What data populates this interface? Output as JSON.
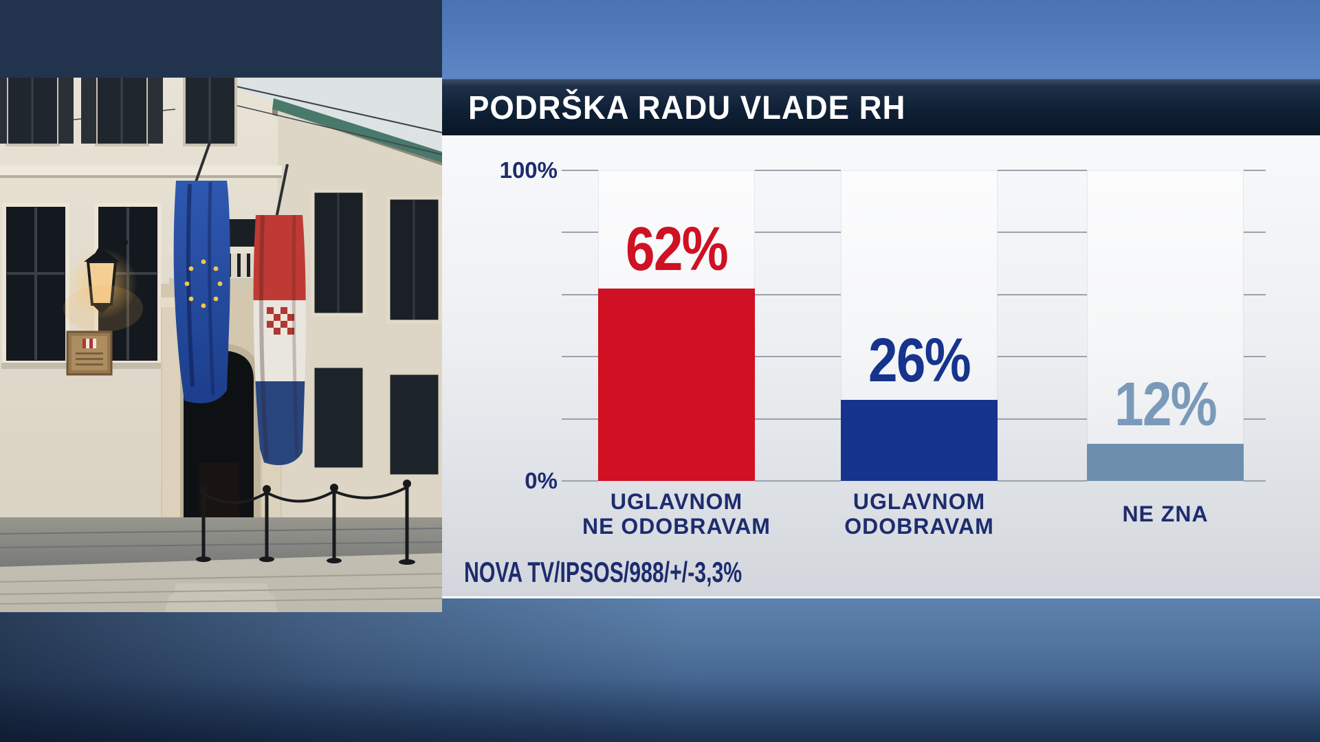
{
  "title_bar": {
    "title": "PODRŠKA RADU VLADE RH"
  },
  "y_axis": {
    "top": "100%",
    "bottom": "0%"
  },
  "source": "NOVA TV/IPSOS/988/+/-3,3%",
  "photo": {
    "name": "government-building-with-eu-and-croatian-flags"
  },
  "colors": {
    "accent_red": "#d01023",
    "accent_navy": "#16338d",
    "accent_steel": "#6d8ead",
    "label_navy": "#1d2c6e",
    "grid_gray": "#98a2ac"
  },
  "chart_data": {
    "type": "bar",
    "title": "PODRŠKA RADU VLADE RH",
    "categories": [
      "UGLAVNOM NE ODOBRAVAM",
      "UGLAVNOM ODOBRAVAM",
      "NE ZNA"
    ],
    "categories_lines": [
      [
        "UGLAVNOM",
        "NE ODOBRAVAM"
      ],
      [
        "UGLAVNOM",
        "ODOBRAVAM"
      ],
      [
        "NE ZNA"
      ]
    ],
    "values": [
      62,
      26,
      12
    ],
    "value_labels": [
      "62%",
      "26%",
      "12%"
    ],
    "bar_colors": [
      "#d01023",
      "#16338d",
      "#6d8ead"
    ],
    "value_label_colors": [
      "#d01023",
      "#16338d",
      "#7b9ab9"
    ],
    "ylim": [
      0,
      100
    ],
    "ytick_labels": [
      "100%",
      "0%"
    ],
    "gridline_levels_pct": [
      0,
      20,
      40,
      60,
      80,
      100
    ],
    "grid": true,
    "legend": "none",
    "source": "NOVA TV/IPSOS/988/+/-3,3%"
  }
}
